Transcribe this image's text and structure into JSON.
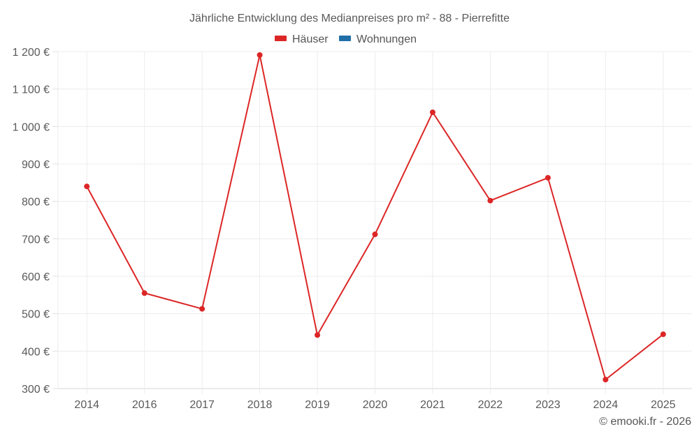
{
  "chart_data": {
    "type": "line",
    "title": "Jährliche Entwicklung des Medianpreises pro m² - 88 - Pierrefitte",
    "xlabel": "",
    "ylabel": "",
    "categories": [
      "2014",
      "2016",
      "2017",
      "2018",
      "2019",
      "2020",
      "2021",
      "2022",
      "2023",
      "2024",
      "2025"
    ],
    "series": [
      {
        "name": "Häuser",
        "color": "#dc2626",
        "values": [
          840,
          555,
          513,
          1191,
          443,
          712,
          1038,
          802,
          863,
          324,
          445
        ]
      },
      {
        "name": "Wohnungen",
        "color": "#1f6ea8",
        "values": []
      }
    ],
    "ylim": [
      300,
      1200
    ],
    "yticks": [
      300,
      400,
      500,
      600,
      700,
      800,
      900,
      1000,
      1100,
      1200
    ],
    "ytick_labels": [
      "300 €",
      "400 €",
      "500 €",
      "600 €",
      "700 €",
      "800 €",
      "900 €",
      "1 000 €",
      "1 100 €",
      "1 200 €"
    ],
    "grid": true,
    "legend_position": "top-center"
  },
  "credit": "© emooki.fr - 2026"
}
